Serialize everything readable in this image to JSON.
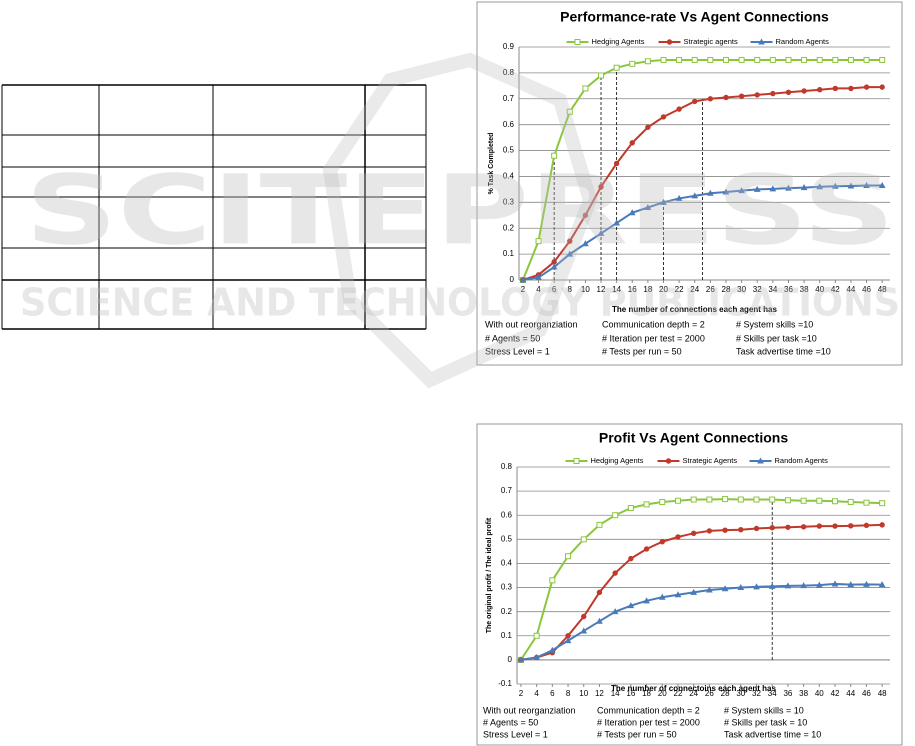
{
  "watermark": {
    "line1": "SCITEPRESS",
    "line2": "SCIENCE AND TECHNOLOGY PUBLICATIONS"
  },
  "chart_data": [
    {
      "type": "line",
      "title": "Performance-rate Vs Agent Connections",
      "xlabel": "The number of connections each agent has",
      "ylabel": "% Task Completed",
      "x": [
        2,
        4,
        6,
        8,
        10,
        12,
        14,
        16,
        18,
        20,
        22,
        24,
        26,
        28,
        30,
        32,
        34,
        36,
        38,
        40,
        42,
        44,
        46,
        48
      ],
      "xlim": [
        1.5,
        49
      ],
      "xticks": [
        2,
        4,
        6,
        8,
        10,
        12,
        14,
        16,
        18,
        20,
        22,
        24,
        26,
        28,
        30,
        32,
        34,
        36,
        38,
        40,
        42,
        44,
        46,
        48
      ],
      "ylim": [
        0,
        0.9
      ],
      "yticks": [
        0,
        0.1,
        0.2,
        0.3,
        0.4,
        0.5,
        0.6,
        0.7,
        0.8,
        0.9
      ],
      "grid": true,
      "series": [
        {
          "name": "Hedging Agents",
          "color": "#8cc63e",
          "marker": "square",
          "values": [
            0,
            0.15,
            0.48,
            0.65,
            0.74,
            0.79,
            0.82,
            0.835,
            0.845,
            0.85,
            0.85,
            0.85,
            0.85,
            0.85,
            0.85,
            0.85,
            0.85,
            0.85,
            0.85,
            0.85,
            0.85,
            0.85,
            0.85,
            0.85
          ]
        },
        {
          "name": "Strategic agents",
          "color": "#c0392b",
          "marker": "circle",
          "values": [
            0,
            0.02,
            0.07,
            0.15,
            0.25,
            0.36,
            0.45,
            0.53,
            0.59,
            0.63,
            0.66,
            0.69,
            0.7,
            0.705,
            0.71,
            0.715,
            0.72,
            0.725,
            0.73,
            0.735,
            0.74,
            0.74,
            0.745,
            0.745
          ]
        },
        {
          "name": "Random Agents",
          "color": "#4a7ab8",
          "marker": "triangle",
          "values": [
            0,
            0.01,
            0.05,
            0.1,
            0.14,
            0.18,
            0.22,
            0.26,
            0.28,
            0.3,
            0.315,
            0.325,
            0.335,
            0.34,
            0.345,
            0.35,
            0.352,
            0.355,
            0.357,
            0.36,
            0.362,
            0.363,
            0.365,
            0.365
          ]
        }
      ],
      "reference_lines": [
        {
          "x": 6,
          "y": 0.48
        },
        {
          "x": 12,
          "y": 0.79
        },
        {
          "x": 14,
          "y": 0.82
        },
        {
          "x": 20,
          "y": 0.3
        },
        {
          "x": 25,
          "y": 0.7
        }
      ],
      "notes": [
        [
          "With out reorganziation",
          "# Agents = 50",
          "Stress Level = 1"
        ],
        [
          "Communication depth = 2",
          "# Iteration per test = 2000",
          "# Tests per run = 50"
        ],
        [
          "# System skills =10",
          "# Skills per task =10",
          "Task advertise time =10"
        ]
      ]
    },
    {
      "type": "line",
      "title": "Profit Vs Agent Connections",
      "xlabel": "The number of connectoins each agent has",
      "ylabel": "The original profit / The ideal profit",
      "x": [
        2,
        4,
        6,
        8,
        10,
        12,
        14,
        16,
        18,
        20,
        22,
        24,
        26,
        28,
        30,
        32,
        34,
        36,
        38,
        40,
        42,
        44,
        46,
        48
      ],
      "xlim": [
        1.5,
        49
      ],
      "xticks": [
        2,
        4,
        6,
        8,
        10,
        12,
        14,
        16,
        18,
        20,
        22,
        24,
        26,
        28,
        30,
        32,
        34,
        36,
        38,
        40,
        42,
        44,
        46,
        48
      ],
      "ylim": [
        -0.1,
        0.8
      ],
      "yticks": [
        -0.1,
        0,
        0.1,
        0.2,
        0.3,
        0.4,
        0.5,
        0.6,
        0.7,
        0.8
      ],
      "grid": true,
      "series": [
        {
          "name": "Hedging Agents",
          "color": "#8cc63e",
          "marker": "square",
          "values": [
            0,
            0.1,
            0.33,
            0.43,
            0.5,
            0.56,
            0.6,
            0.63,
            0.645,
            0.655,
            0.66,
            0.665,
            0.665,
            0.667,
            0.665,
            0.665,
            0.665,
            0.662,
            0.66,
            0.66,
            0.658,
            0.655,
            0.652,
            0.65
          ]
        },
        {
          "name": "Strategic Agents",
          "color": "#c0392b",
          "marker": "circle",
          "values": [
            0,
            0.01,
            0.03,
            0.1,
            0.18,
            0.28,
            0.36,
            0.42,
            0.46,
            0.49,
            0.51,
            0.525,
            0.535,
            0.538,
            0.54,
            0.545,
            0.548,
            0.55,
            0.552,
            0.555,
            0.555,
            0.556,
            0.558,
            0.56
          ]
        },
        {
          "name": "Random Agents",
          "color": "#4a7ab8",
          "marker": "triangle",
          "values": [
            0,
            0.01,
            0.04,
            0.08,
            0.12,
            0.16,
            0.2,
            0.225,
            0.245,
            0.26,
            0.27,
            0.28,
            0.29,
            0.295,
            0.3,
            0.303,
            0.305,
            0.307,
            0.308,
            0.31,
            0.315,
            0.312,
            0.313,
            0.312
          ]
        }
      ],
      "reference_lines": [
        {
          "x": 34,
          "y": 0.665
        }
      ],
      "notes": [
        [
          "With out reorganziation",
          "# Agents = 50",
          "Stress Level = 1"
        ],
        [
          "Communication depth = 2",
          "# Iteration per test = 2000",
          "# Tests per run = 50"
        ],
        [
          "# System skills = 10",
          "# Skills per task = 10",
          "Task advertise time = 10"
        ]
      ]
    }
  ]
}
